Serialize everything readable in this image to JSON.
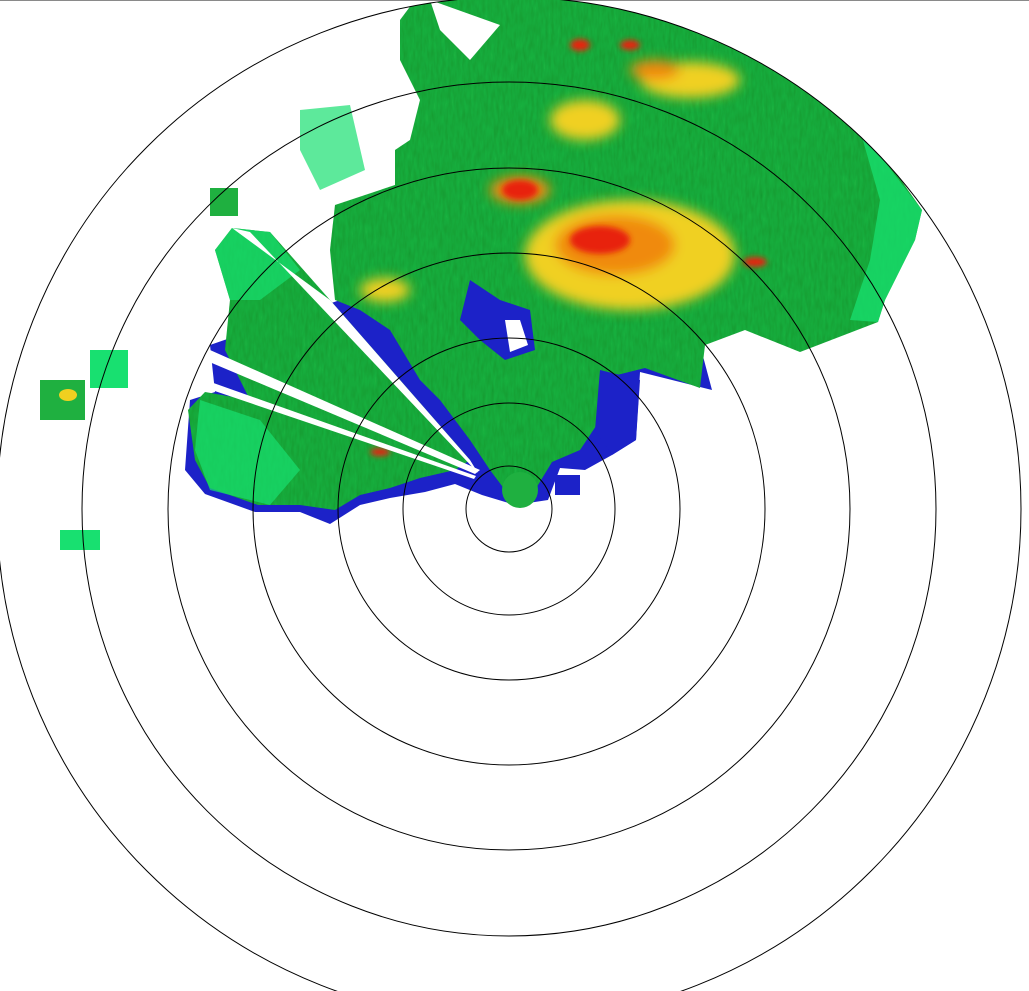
{
  "radar": {
    "range_ring_count": 7,
    "colors": {
      "weak_blue": "#1c22c8",
      "light_green": "#18e070",
      "green": "#1fb040",
      "yellow": "#f0d020",
      "orange": "#f08a10",
      "red": "#e82010",
      "ring": "#000000"
    }
  }
}
